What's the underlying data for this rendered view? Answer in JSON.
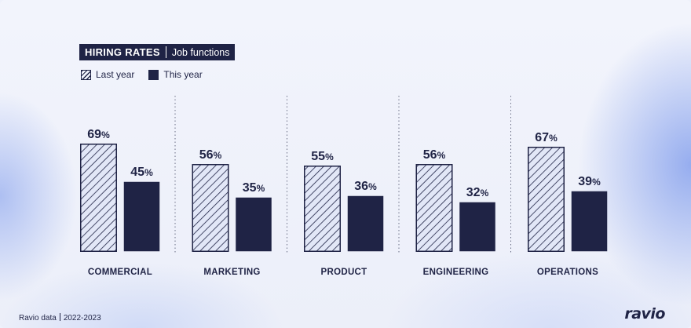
{
  "header": {
    "title": "HIRING RATES",
    "subtitle": "Job functions"
  },
  "legend": {
    "last_year": "Last year",
    "this_year": "This year"
  },
  "footer": {
    "source": "Ravio data",
    "period": "2022-2023",
    "logo": "ravio"
  },
  "colors": {
    "dark": "#1f2345",
    "hatched_fill": "#e2e7f7",
    "background": "#eef1fb"
  },
  "chart_data": {
    "type": "bar",
    "title": "HIRING RATES | Job functions",
    "categories": [
      "COMMERCIAL",
      "MARKETING",
      "PRODUCT",
      "ENGINEERING",
      "OPERATIONS"
    ],
    "series": [
      {
        "name": "Last year",
        "style": "hatched",
        "values": [
          69,
          56,
          55,
          56,
          67
        ]
      },
      {
        "name": "This year",
        "style": "solid",
        "values": [
          45,
          35,
          36,
          32,
          39
        ]
      }
    ],
    "value_suffix": "%",
    "ylim": [
      0,
      100
    ],
    "grid": false,
    "group_separators": "dotted",
    "legend_position": "top-left"
  }
}
